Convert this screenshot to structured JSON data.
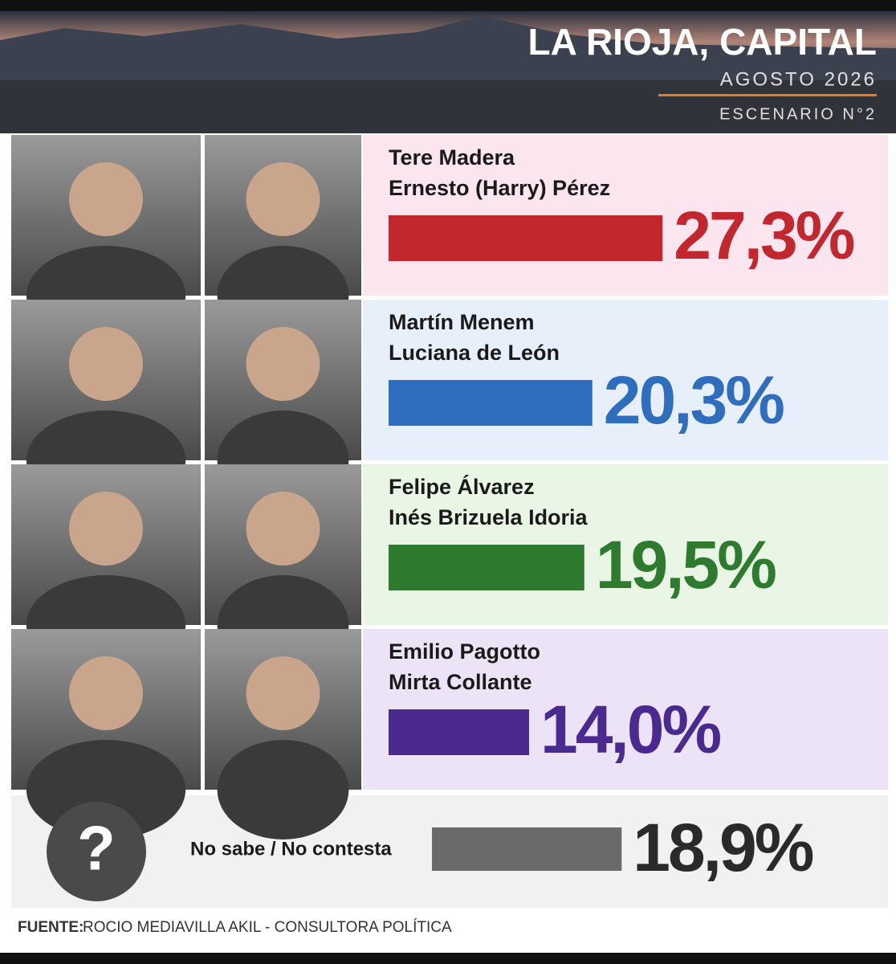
{
  "chart_data": {
    "type": "bar",
    "title": "LA RIOJA, CAPITAL",
    "subtitle": "AGOSTO 2026",
    "annotation": "ESCENARIO N°2",
    "categories": [
      [
        "Tere Madera",
        "Ernesto (Harry) Pérez"
      ],
      [
        "Martín Menem",
        "Luciana de León"
      ],
      [
        "Felipe Álvarez",
        "Inés Brizuela Idoria"
      ],
      [
        "Emilio Pagotto",
        "Mirta Collante"
      ],
      [
        "No sabe / No contesta"
      ]
    ],
    "values": [
      27.3,
      20.3,
      19.5,
      14.0,
      18.9
    ],
    "value_labels": [
      "27,3%",
      "20,3%",
      "19,5%",
      "14,0%",
      "18,9%"
    ],
    "colors": [
      "#c1272d",
      "#2f6dbf",
      "#2e7b2f",
      "#4a2a8e",
      "#6a6a6a"
    ],
    "unknown_icon": "?",
    "source_label": "FUENTE:",
    "source": "ROCIO MEDIAVILLA AKIL - CONSULTORA POLÍTICA"
  }
}
